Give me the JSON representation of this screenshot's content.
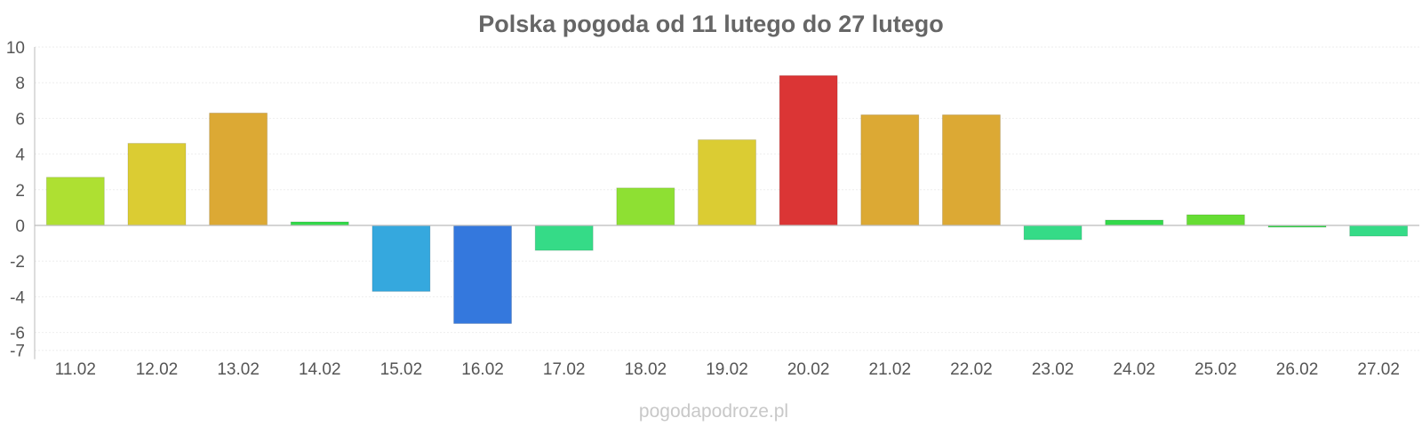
{
  "chart_data": {
    "type": "bar",
    "title": "Polska pogoda od 11 lutego do 27 lutego",
    "xlabel": "",
    "ylabel": "",
    "ylim": [
      -7,
      10
    ],
    "y_ticks": [
      10,
      8,
      6,
      4,
      2,
      0,
      -2,
      -4,
      -6,
      -7
    ],
    "grid": true,
    "categories": [
      "11.02",
      "12.02",
      "13.02",
      "14.02",
      "15.02",
      "16.02",
      "17.02",
      "18.02",
      "19.02",
      "20.02",
      "21.02",
      "22.02",
      "23.02",
      "24.02",
      "25.02",
      "26.02",
      "27.02"
    ],
    "values": [
      2.7,
      4.6,
      6.3,
      0.2,
      -3.7,
      -5.5,
      -1.4,
      2.1,
      4.8,
      8.4,
      6.2,
      6.2,
      -0.8,
      0.3,
      0.6,
      -0.1,
      -0.6
    ],
    "colors": [
      "#aee032",
      "#dbcc33",
      "#dca934",
      "#33d94a",
      "#35a8de",
      "#3478dd",
      "#35db87",
      "#8ee033",
      "#dbcc33",
      "#db3535",
      "#dca934",
      "#dca934",
      "#35db87",
      "#33d94a",
      "#66dd33",
      "#33d94a",
      "#35db87"
    ]
  },
  "watermark": "pogodapodroze.pl"
}
